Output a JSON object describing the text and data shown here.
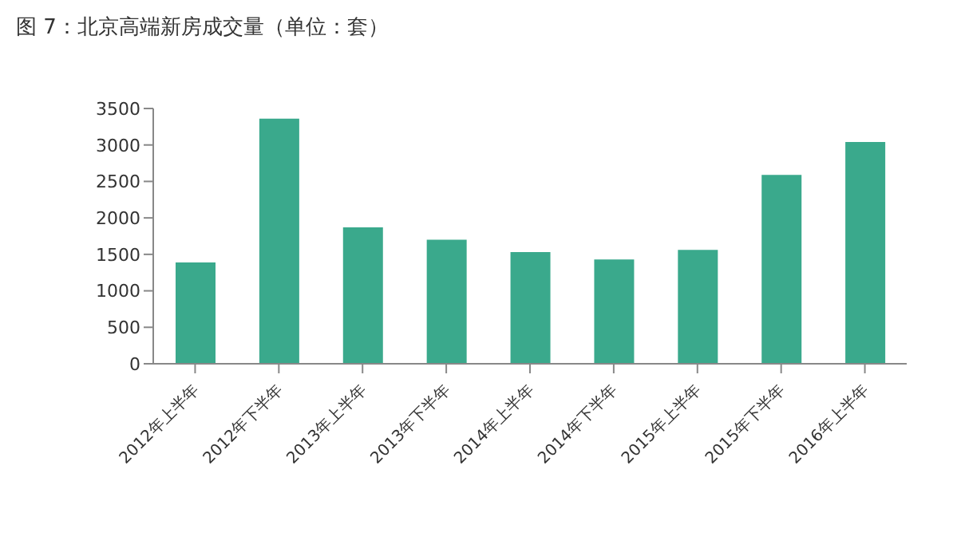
{
  "chart_data": {
    "type": "bar",
    "title": "图 7：北京高端新房成交量（单位：套）",
    "categories": [
      "2012年上半年",
      "2012年下半年",
      "2013年上半年",
      "2013年下半年",
      "2014年上半年",
      "2014年下半年",
      "2015年上半年",
      "2015年下半年",
      "2016年上半年"
    ],
    "values": [
      1390,
      3360,
      1870,
      1700,
      1530,
      1430,
      1560,
      2590,
      3040
    ],
    "color": "#3aa98c",
    "ylim": [
      0,
      3500
    ],
    "yticks": [
      0,
      500,
      1000,
      1500,
      2000,
      2500,
      3000,
      3500
    ],
    "grid": false
  }
}
